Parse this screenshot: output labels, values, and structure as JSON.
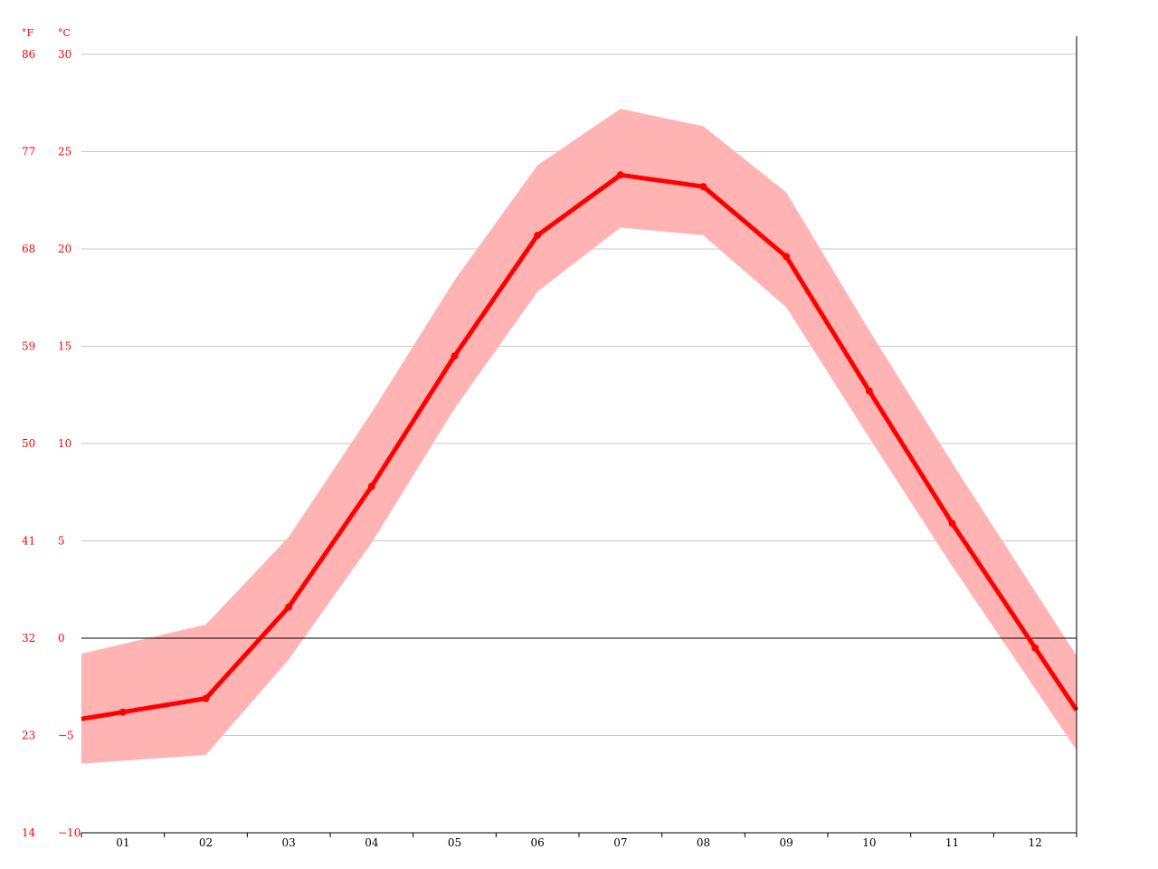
{
  "chart_data": {
    "type": "line",
    "title": "",
    "xlabel": "",
    "ylabel": "",
    "categories": [
      "01",
      "02",
      "03",
      "04",
      "05",
      "06",
      "07",
      "08",
      "09",
      "10",
      "11",
      "12"
    ],
    "unit_labels": {
      "fahrenheit": "°F",
      "celsius": "°C"
    },
    "y_ticks_celsius": [
      "30",
      "25",
      "20",
      "15",
      "10",
      "5",
      "0",
      "−5",
      "−10"
    ],
    "y_tick_values": [
      30,
      25,
      20,
      15,
      10,
      5,
      0,
      -5,
      -10
    ],
    "y_ticks_fahrenheit": [
      "86",
      "77",
      "68",
      "59",
      "50",
      "41",
      "32",
      "23",
      "14"
    ],
    "ylim": [
      -10,
      30
    ],
    "grid": true,
    "series": [
      {
        "values": [
          -3.8,
          -3.1,
          1.6,
          7.8,
          14.5,
          20.7,
          23.8,
          23.2,
          19.6,
          12.7,
          5.9,
          -0.5
        ]
      }
    ],
    "band": {
      "upper": [
        -0.3,
        0.7,
        5.2,
        11.6,
        18.4,
        24.3,
        27.2,
        26.3,
        22.9,
        15.8,
        9.0,
        2.4
      ],
      "lower": [
        -6.3,
        -6.0,
        -1.1,
        4.9,
        11.8,
        17.8,
        21.1,
        20.7,
        17.0,
        10.3,
        3.7,
        -2.6
      ]
    },
    "colors": {
      "line": "#ff0000",
      "band": "#ffb3b3",
      "grid": "#c8c8c8",
      "zero_line": "#000000",
      "axis": "#000000"
    }
  }
}
